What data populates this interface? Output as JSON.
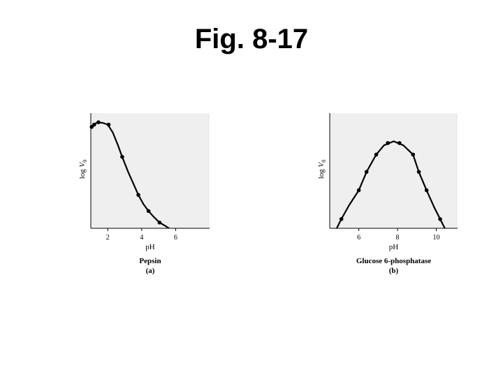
{
  "slide": {
    "title": "Fig. 8-17"
  },
  "chart_data": [
    {
      "type": "line",
      "name": "Pepsin",
      "panel_label": "(a)",
      "xlabel": "pH",
      "ylabel_text": "log ",
      "ylabel_var": "V",
      "ylabel_sub": "0",
      "xlim": [
        1,
        8
      ],
      "ylim": [
        0,
        1
      ],
      "xticks": [
        2,
        4,
        6
      ],
      "y_tick_labels": "none",
      "grid": false,
      "background": "#efefef",
      "series": [
        {
          "points": [
            [
              1.05,
              0.88
            ],
            [
              1.2,
              0.9
            ],
            [
              1.45,
              0.92
            ],
            [
              2.05,
              0.9
            ],
            [
              2.85,
              0.62
            ],
            [
              3.8,
              0.29
            ],
            [
              4.4,
              0.15
            ],
            [
              5.05,
              0.05
            ]
          ],
          "curve": [
            [
              1.0,
              0.87
            ],
            [
              1.15,
              0.9
            ],
            [
              1.4,
              0.92
            ],
            [
              1.7,
              0.915
            ],
            [
              2.0,
              0.9
            ],
            [
              2.3,
              0.83
            ],
            [
              2.6,
              0.72
            ],
            [
              2.85,
              0.62
            ],
            [
              3.2,
              0.49
            ],
            [
              3.5,
              0.39
            ],
            [
              3.8,
              0.29
            ],
            [
              4.1,
              0.21
            ],
            [
              4.4,
              0.15
            ],
            [
              4.7,
              0.1
            ],
            [
              5.05,
              0.05
            ],
            [
              5.4,
              0.02
            ],
            [
              5.8,
              -0.02
            ]
          ]
        }
      ]
    },
    {
      "type": "line",
      "name": "Glucose 6-phosphatase",
      "panel_label": "(b)",
      "xlabel": "pH",
      "ylabel_text": "log ",
      "ylabel_var": "V",
      "ylabel_sub": "0",
      "xlim": [
        4.5,
        11.1
      ],
      "ylim": [
        0,
        1
      ],
      "xticks": [
        6,
        8,
        10
      ],
      "y_tick_labels": "none",
      "grid": false,
      "background": "#efefef",
      "series": [
        {
          "points": [
            [
              5.1,
              0.08
            ],
            [
              6.0,
              0.33
            ],
            [
              6.4,
              0.49
            ],
            [
              6.9,
              0.64
            ],
            [
              7.5,
              0.74
            ],
            [
              8.1,
              0.74
            ],
            [
              8.8,
              0.64
            ],
            [
              9.1,
              0.49
            ],
            [
              9.5,
              0.33
            ],
            [
              10.2,
              0.08
            ]
          ],
          "curve": [
            [
              4.8,
              -0.02
            ],
            [
              5.1,
              0.08
            ],
            [
              5.5,
              0.2
            ],
            [
              6.0,
              0.33
            ],
            [
              6.4,
              0.49
            ],
            [
              6.9,
              0.64
            ],
            [
              7.3,
              0.72
            ],
            [
              7.8,
              0.755
            ],
            [
              8.3,
              0.72
            ],
            [
              8.8,
              0.64
            ],
            [
              9.1,
              0.49
            ],
            [
              9.5,
              0.33
            ],
            [
              9.9,
              0.18
            ],
            [
              10.2,
              0.08
            ],
            [
              10.5,
              -0.02
            ]
          ]
        }
      ]
    }
  ]
}
